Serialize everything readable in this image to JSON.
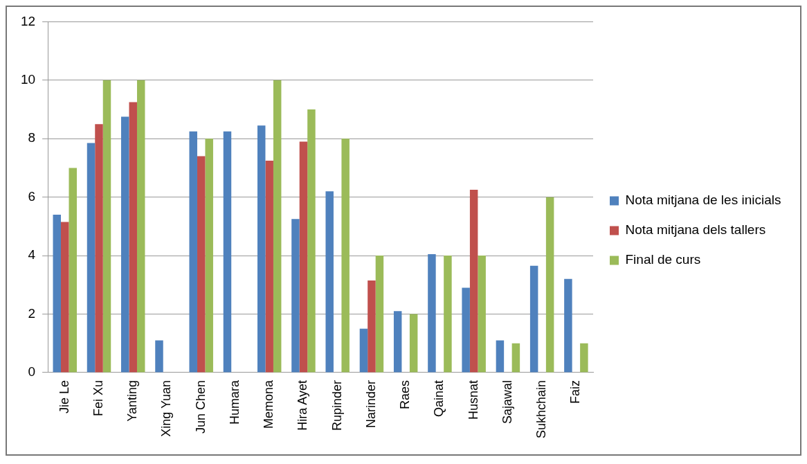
{
  "chart_data": {
    "type": "bar",
    "categories": [
      "Jie Le",
      "Fei Xu",
      "Yanting",
      "Xing Yuan",
      "Jun Chen",
      "Humara",
      "Memona",
      "Hira Ayet",
      "Rupinder",
      "Narinder",
      "Raes",
      "Qainat",
      "Husnat",
      "Sajawal",
      "Sukhchain",
      "Faiz"
    ],
    "series": [
      {
        "name": "Nota mitjana de les inicials",
        "color": "#4f81bd",
        "values": [
          5.4,
          7.85,
          8.75,
          1.1,
          8.25,
          8.25,
          8.45,
          5.25,
          6.2,
          1.5,
          2.1,
          4.05,
          2.9,
          1.1,
          3.65,
          3.2
        ]
      },
      {
        "name": "Nota mitjana dels tallers",
        "color": "#c0504d",
        "values": [
          5.15,
          8.5,
          9.25,
          null,
          7.4,
          null,
          7.25,
          7.9,
          null,
          3.15,
          null,
          null,
          6.25,
          null,
          null,
          null
        ]
      },
      {
        "name": "Final de curs",
        "color": "#9bbb59",
        "values": [
          7,
          10,
          10,
          null,
          8,
          null,
          10,
          9,
          8,
          4,
          2,
          4,
          4,
          1,
          6,
          1
        ]
      }
    ],
    "ylim": [
      0,
      12
    ],
    "yticks": [
      0,
      2,
      4,
      6,
      8,
      10,
      12
    ],
    "grid": "y",
    "legend": "right"
  }
}
